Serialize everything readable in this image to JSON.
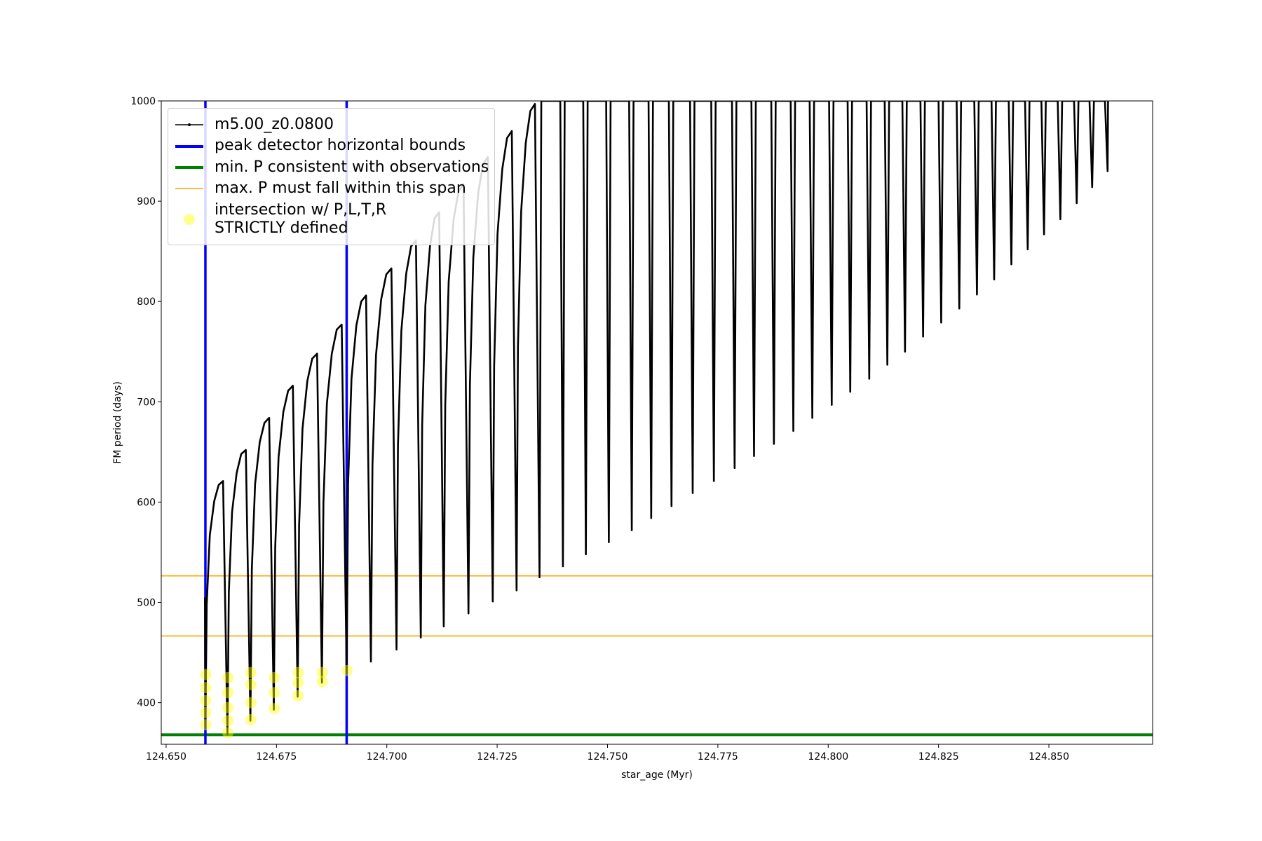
{
  "chart_data": {
    "type": "line",
    "x_label": "star_age (Myr)",
    "y_label": "FM period (days)",
    "xlim": [
      124.6489,
      124.8735
    ],
    "ylim": [
      358.5,
      1000
    ],
    "xticks": [
      {
        "value": 124.65,
        "label": "124.650"
      },
      {
        "value": 124.675,
        "label": "124.675"
      },
      {
        "value": 124.7,
        "label": "124.700"
      },
      {
        "value": 124.725,
        "label": "124.725"
      },
      {
        "value": 124.75,
        "label": "124.750"
      },
      {
        "value": 124.775,
        "label": "124.775"
      },
      {
        "value": 124.8,
        "label": "124.800"
      },
      {
        "value": 124.825,
        "label": "124.825"
      },
      {
        "value": 124.85,
        "label": "124.850"
      }
    ],
    "yticks": [
      400,
      500,
      600,
      700,
      800,
      900,
      1000
    ],
    "grid": false,
    "legend": "upper left",
    "series": [
      {
        "name": "m5.00_z0.0800",
        "type": "line",
        "color": "#000000",
        "x": [
          124.6588,
          124.6589,
          124.6592,
          124.6599,
          124.6609,
          124.6619,
          124.6629,
          124.6639,
          124.66421,
          124.66494,
          124.66598,
          124.66702,
          124.66806,
          124.6691,
          124.66942,
          124.67016,
          124.67122,
          124.67228,
          124.67334,
          124.6744,
          124.67472,
          124.67548,
          124.67656,
          124.67764,
          124.67872,
          124.6798,
          124.68013,
          124.6809,
          124.682,
          124.6831,
          124.6842,
          124.6853,
          124.68564,
          124.68642,
          124.68754,
          124.68866,
          124.68978,
          124.6909,
          124.69123,
          124.692,
          124.6931,
          124.6942,
          124.6953,
          124.6964,
          124.69675,
          124.69756,
          124.69872,
          124.69988,
          124.70104,
          124.7022,
          124.70253,
          124.7033,
          124.7044,
          124.7055,
          124.7066,
          124.7077,
          124.70801,
          124.70874,
          124.70978,
          124.71082,
          124.71186,
          124.7129,
          124.71324,
          124.71402,
          124.71514,
          124.71626,
          124.71738,
          124.7185,
          124.71883,
          124.7196,
          124.7207,
          124.7218,
          124.7229,
          124.724,
          124.72432,
          124.72508,
          124.72616,
          124.72724,
          124.72832,
          124.7294,
          124.72971,
          124.73044,
          124.73148,
          124.73252,
          124.73356,
          124.7346,
          124.735,
          124.7393,
          124.7399,
          124.7403,
          124.7445,
          124.7451,
          124.7455,
          124.7497,
          124.7503,
          124.7507,
          124.7549,
          124.7555,
          124.7559,
          124.7593,
          124.7599,
          124.7603,
          124.7639,
          124.7645,
          124.7649,
          124.7687,
          124.7693,
          124.7697,
          124.7735,
          124.7741,
          124.7745,
          124.7782,
          124.7788,
          124.7792,
          124.7826,
          124.7832,
          124.7836,
          124.7871,
          124.7877,
          124.7881,
          124.7915,
          124.7921,
          124.7925,
          124.7958,
          124.7964,
          124.7968,
          124.8002,
          124.8008,
          124.8012,
          124.8044,
          124.805,
          124.8054,
          124.8087,
          124.8093,
          124.8097,
          124.8128,
          124.8134,
          124.8138,
          124.8168,
          124.8174,
          124.8178,
          124.8209,
          124.8215,
          124.8219,
          124.825,
          124.8256,
          124.826,
          124.8291,
          124.8297,
          124.8301,
          124.8331,
          124.8337,
          124.8341,
          124.837,
          124.8376,
          124.838,
          124.8409,
          124.8415,
          124.8419,
          124.8446,
          124.8452,
          124.8456,
          124.8483,
          124.8489,
          124.8493,
          124.852,
          124.8526,
          124.853,
          124.8557,
          124.8563,
          124.8567,
          124.8592,
          124.8598,
          124.8602,
          124.8627,
          124.8633,
          124.8634
        ],
        "values": [
          505,
          375,
          498,
          567,
          601,
          617,
          621,
          368,
          510,
          590,
          629,
          648,
          652,
          382,
          533,
          618,
          660,
          679,
          684,
          393,
          555,
          645,
          690,
          711,
          716,
          406,
          577,
          673,
          721,
          743,
          748,
          420,
          599,
          698,
          748,
          772,
          777,
          430,
          618,
          723,
          776,
          800,
          806,
          441,
          637,
          747,
          802,
          827,
          833,
          453,
          657,
          771,
          828,
          855,
          861,
          465,
          677,
          796,
          855,
          883,
          889,
          476,
          697,
          820,
          882,
          910,
          917,
          489,
          717,
          844,
          908,
          937,
          944,
          501,
          736,
          867,
          932,
          963,
          970,
          512,
          755,
          890,
          958,
          990,
          997,
          525,
          1000,
          1000,
          536,
          1000,
          1000,
          548,
          1000,
          1000,
          560,
          1000,
          1000,
          572,
          1000,
          1000,
          584,
          1000,
          1000,
          596,
          1000,
          1000,
          609,
          1000,
          1000,
          621,
          1000,
          1000,
          634,
          1000,
          1000,
          646,
          1000,
          1000,
          658,
          1000,
          1000,
          671,
          1000,
          1000,
          684,
          1000,
          1000,
          697,
          1000,
          1000,
          710,
          1000,
          1000,
          723,
          1000,
          1000,
          737,
          1000,
          1000,
          750,
          1000,
          1000,
          765,
          1000,
          1000,
          779,
          1000,
          1000,
          793,
          1000,
          1000,
          807,
          1000,
          1000,
          822,
          1000,
          1000,
          837,
          1000,
          1000,
          852,
          1000,
          1000,
          867,
          1000,
          1000,
          882,
          1000,
          1000,
          898,
          1000,
          1000,
          914,
          1000,
          1000,
          930,
          1000
        ]
      },
      {
        "name": "peak detector horizontal bounds",
        "type": "vline",
        "color": "#0000ff",
        "x": [
          124.6589,
          124.6909
        ]
      },
      {
        "name": "min. P consistent with observations",
        "type": "hline",
        "color": "#008000",
        "values": [
          368
        ]
      },
      {
        "name": "max. P must fall within this span",
        "type": "hline",
        "color": "#ffa500",
        "values": [
          526.4,
          466.5
        ]
      },
      {
        "name": "intersection w/ P,L,T,R\nSTRICTLY defined",
        "type": "scatter",
        "color": "#ffff00",
        "x": [
          124.659,
          124.659,
          124.659,
          124.659,
          124.659,
          124.664,
          124.664,
          124.664,
          124.664,
          124.664,
          124.6692,
          124.6692,
          124.6692,
          124.6692,
          124.6745,
          124.6745,
          124.6745,
          124.6799,
          124.6799,
          124.6799,
          124.6854,
          124.6854,
          124.691
        ],
        "values": [
          378,
          390,
          402,
          415,
          428,
          370,
          382,
          395,
          410,
          425,
          383,
          400,
          418,
          430,
          394,
          410,
          425,
          407,
          420,
          430,
          421,
          430,
          432
        ]
      }
    ]
  }
}
